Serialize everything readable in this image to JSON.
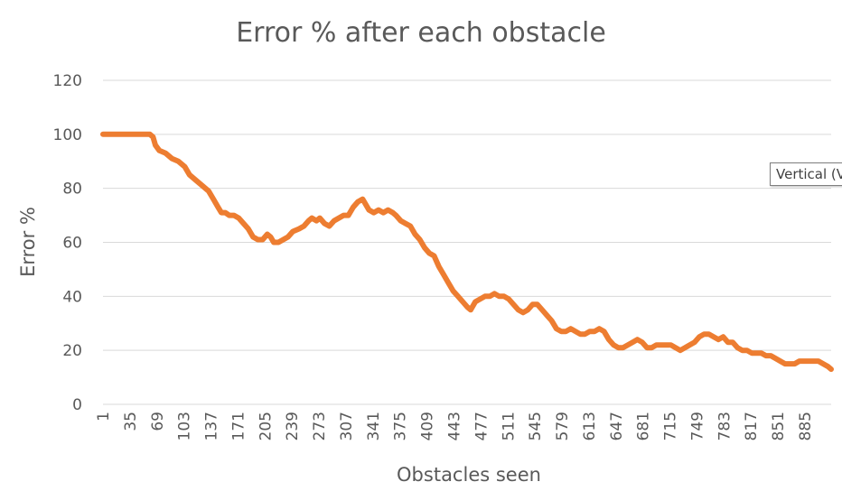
{
  "chart_data": {
    "type": "line",
    "title": "Error % after each obstacle",
    "xlabel": "Obstacles seen",
    "ylabel": "Error %",
    "ylim": [
      0,
      120
    ],
    "yticks": [
      0,
      20,
      40,
      60,
      80,
      100,
      120
    ],
    "xlim": [
      1,
      918
    ],
    "xtick_labels": [
      "1",
      "35",
      "69",
      "103",
      "137",
      "171",
      "205",
      "239",
      "273",
      "307",
      "341",
      "375",
      "409",
      "443",
      "477",
      "511",
      "545",
      "579",
      "613",
      "647",
      "681",
      "715",
      "749",
      "783",
      "817",
      "851",
      "885"
    ],
    "grid": true,
    "legend": "none",
    "series": [
      {
        "color": "#ED7D31",
        "points": [
          [
            1,
            100
          ],
          [
            20,
            100
          ],
          [
            40,
            100
          ],
          [
            60,
            100
          ],
          [
            64,
            99
          ],
          [
            67,
            96
          ],
          [
            72,
            94
          ],
          [
            80,
            93
          ],
          [
            88,
            91
          ],
          [
            96,
            90
          ],
          [
            104,
            88
          ],
          [
            110,
            85
          ],
          [
            118,
            83
          ],
          [
            126,
            81
          ],
          [
            134,
            79
          ],
          [
            140,
            76
          ],
          [
            146,
            73
          ],
          [
            150,
            71
          ],
          [
            155,
            71
          ],
          [
            160,
            70
          ],
          [
            166,
            70
          ],
          [
            172,
            69
          ],
          [
            178,
            67
          ],
          [
            184,
            65
          ],
          [
            190,
            62
          ],
          [
            196,
            61
          ],
          [
            202,
            61
          ],
          [
            208,
            63
          ],
          [
            212,
            62
          ],
          [
            216,
            60
          ],
          [
            222,
            60
          ],
          [
            228,
            61
          ],
          [
            234,
            62
          ],
          [
            240,
            64
          ],
          [
            248,
            65
          ],
          [
            254,
            66
          ],
          [
            260,
            68
          ],
          [
            264,
            69
          ],
          [
            270,
            68
          ],
          [
            274,
            69
          ],
          [
            280,
            67
          ],
          [
            286,
            66
          ],
          [
            292,
            68
          ],
          [
            298,
            69
          ],
          [
            304,
            70
          ],
          [
            310,
            70
          ],
          [
            316,
            73
          ],
          [
            322,
            75
          ],
          [
            328,
            76
          ],
          [
            332,
            74
          ],
          [
            336,
            72
          ],
          [
            342,
            71
          ],
          [
            348,
            72
          ],
          [
            354,
            71
          ],
          [
            360,
            72
          ],
          [
            366,
            71
          ],
          [
            370,
            70
          ],
          [
            376,
            68
          ],
          [
            382,
            67
          ],
          [
            388,
            66
          ],
          [
            394,
            63
          ],
          [
            400,
            61
          ],
          [
            406,
            58
          ],
          [
            412,
            56
          ],
          [
            418,
            55
          ],
          [
            424,
            51
          ],
          [
            430,
            48
          ],
          [
            436,
            45
          ],
          [
            442,
            42
          ],
          [
            448,
            40
          ],
          [
            454,
            38
          ],
          [
            460,
            36
          ],
          [
            464,
            35
          ],
          [
            470,
            38
          ],
          [
            476,
            39
          ],
          [
            482,
            40
          ],
          [
            488,
            40
          ],
          [
            494,
            41
          ],
          [
            500,
            40
          ],
          [
            506,
            40
          ],
          [
            512,
            39
          ],
          [
            518,
            37
          ],
          [
            524,
            35
          ],
          [
            530,
            34
          ],
          [
            536,
            35
          ],
          [
            542,
            37
          ],
          [
            548,
            37
          ],
          [
            554,
            35
          ],
          [
            560,
            33
          ],
          [
            566,
            31
          ],
          [
            572,
            28
          ],
          [
            578,
            27
          ],
          [
            584,
            27
          ],
          [
            590,
            28
          ],
          [
            596,
            27
          ],
          [
            602,
            26
          ],
          [
            608,
            26
          ],
          [
            614,
            27
          ],
          [
            620,
            27
          ],
          [
            626,
            28
          ],
          [
            632,
            27
          ],
          [
            638,
            24
          ],
          [
            644,
            22
          ],
          [
            650,
            21
          ],
          [
            656,
            21
          ],
          [
            662,
            22
          ],
          [
            668,
            23
          ],
          [
            674,
            24
          ],
          [
            680,
            23
          ],
          [
            686,
            21
          ],
          [
            692,
            21
          ],
          [
            698,
            22
          ],
          [
            704,
            22
          ],
          [
            710,
            22
          ],
          [
            716,
            22
          ],
          [
            722,
            21
          ],
          [
            728,
            20
          ],
          [
            734,
            21
          ],
          [
            740,
            22
          ],
          [
            746,
            23
          ],
          [
            752,
            25
          ],
          [
            758,
            26
          ],
          [
            764,
            26
          ],
          [
            770,
            25
          ],
          [
            776,
            24
          ],
          [
            782,
            25
          ],
          [
            788,
            23
          ],
          [
            794,
            23
          ],
          [
            800,
            21
          ],
          [
            806,
            20
          ],
          [
            812,
            20
          ],
          [
            818,
            19
          ],
          [
            824,
            19
          ],
          [
            830,
            19
          ],
          [
            836,
            18
          ],
          [
            842,
            18
          ],
          [
            848,
            17
          ],
          [
            854,
            16
          ],
          [
            860,
            15
          ],
          [
            866,
            15
          ],
          [
            872,
            15
          ],
          [
            878,
            16
          ],
          [
            884,
            16
          ],
          [
            890,
            16
          ],
          [
            896,
            16
          ],
          [
            902,
            16
          ],
          [
            908,
            15
          ],
          [
            914,
            14
          ],
          [
            918,
            13
          ]
        ]
      }
    ]
  },
  "tooltip": {
    "text": "Vertical (V"
  }
}
